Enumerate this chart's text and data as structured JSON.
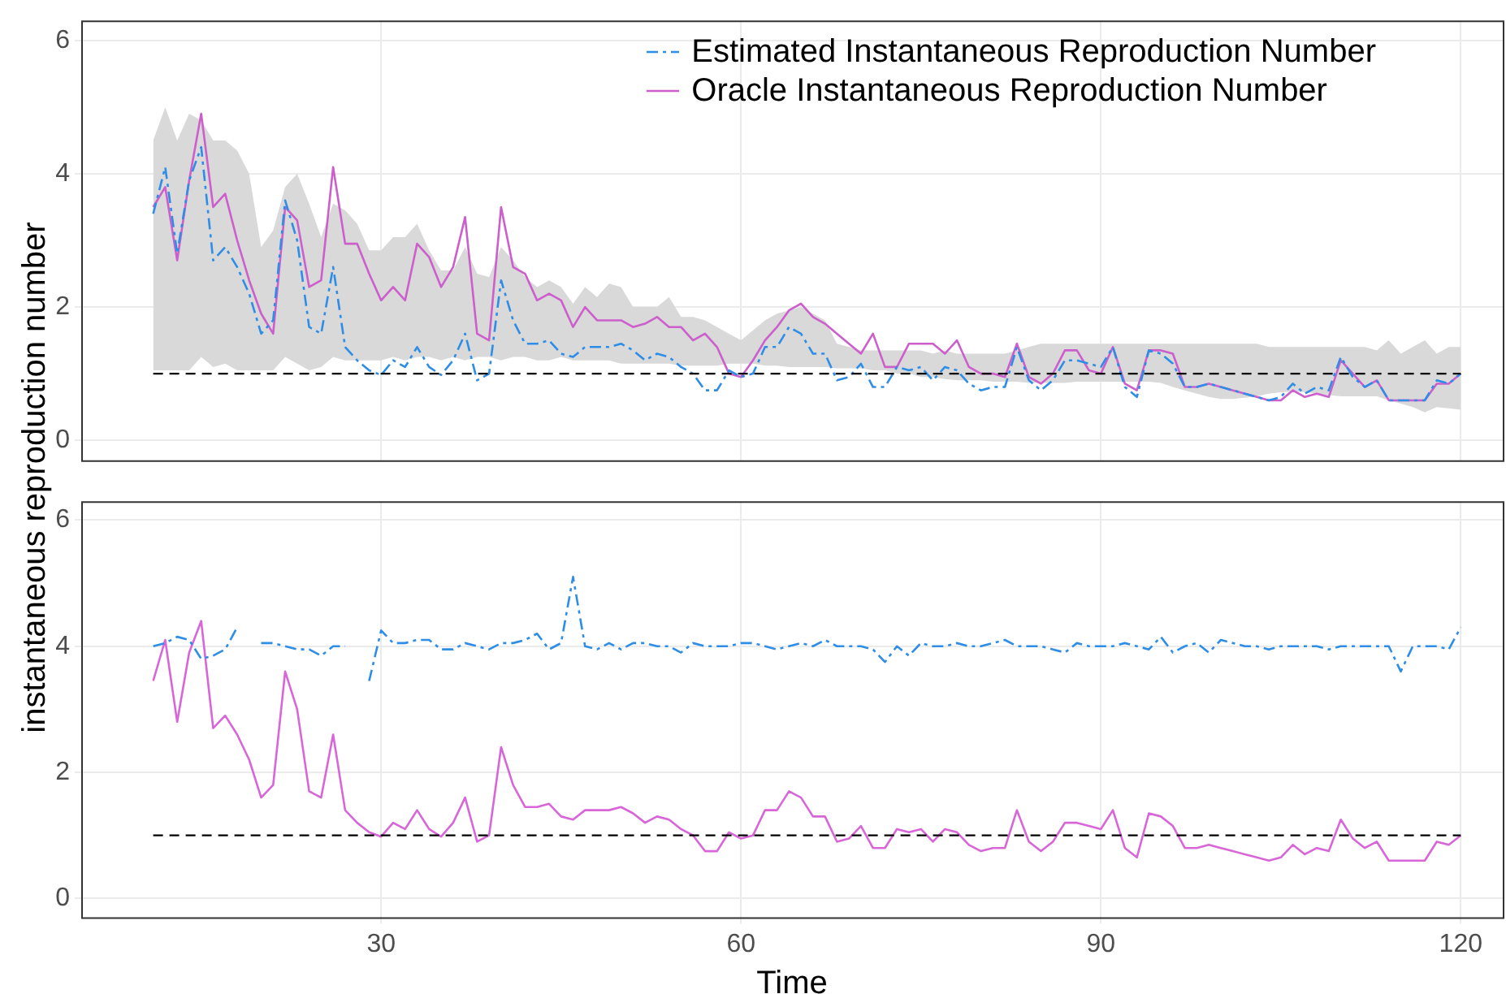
{
  "chart_data": [
    {
      "type": "line",
      "ylabel": "instantaneous reproduction number",
      "xlim": [
        5,
        123.5
      ],
      "xticks": [
        30,
        60,
        90,
        120
      ],
      "ylim": [
        -0.3,
        6.3
      ],
      "yticks": [
        0,
        2,
        4,
        6
      ],
      "tick_labels": "y",
      "grid": true,
      "legend": "top right",
      "marker": "none",
      "x": [
        11,
        12,
        13,
        14,
        15,
        16,
        17,
        18,
        19,
        20,
        21,
        22,
        23,
        24,
        25,
        26,
        27,
        28,
        29,
        30,
        31,
        32,
        33,
        34,
        35,
        36,
        37,
        38,
        39,
        40,
        41,
        42,
        43,
        44,
        45,
        46,
        47,
        48,
        49,
        50,
        51,
        52,
        53,
        54,
        55,
        56,
        57,
        58,
        59,
        60,
        61,
        62,
        63,
        64,
        65,
        66,
        67,
        68,
        69,
        70,
        71,
        72,
        73,
        74,
        75,
        76,
        77,
        78,
        79,
        80,
        81,
        82,
        83,
        84,
        85,
        86,
        87,
        88,
        89,
        90,
        91,
        92,
        93,
        94,
        95,
        96,
        97,
        98,
        99,
        100,
        101,
        102,
        103,
        104,
        105,
        106,
        107,
        108,
        109,
        110,
        111,
        112,
        113,
        114,
        115,
        116,
        117,
        118,
        119,
        120
      ],
      "ref_lines": [
        {
          "axis": "y",
          "value": 1,
          "line_style": "dashed",
          "color": "#000000"
        }
      ],
      "series": [
        {
          "name": "Estimated Instantaneous Reproduction Number",
          "color": "#2e8de6",
          "line_style": "dashed",
          "values": [
            3.4,
            4.1,
            2.8,
            3.9,
            4.4,
            2.7,
            2.9,
            2.6,
            2.2,
            1.6,
            1.8,
            3.6,
            3.0,
            1.7,
            1.6,
            2.6,
            1.4,
            1.2,
            1.05,
            0.98,
            1.2,
            1.1,
            1.4,
            1.1,
            0.98,
            1.2,
            1.6,
            0.9,
            1.0,
            2.4,
            1.8,
            1.45,
            1.45,
            1.5,
            1.3,
            1.25,
            1.4,
            1.4,
            1.4,
            1.45,
            1.35,
            1.2,
            1.3,
            1.25,
            1.1,
            1.0,
            0.75,
            0.75,
            1.05,
            0.95,
            1.0,
            1.4,
            1.4,
            1.7,
            1.6,
            1.3,
            1.3,
            0.9,
            0.95,
            1.15,
            0.8,
            0.8,
            1.1,
            1.05,
            1.1,
            0.9,
            1.1,
            1.05,
            0.85,
            0.75,
            0.8,
            0.8,
            1.4,
            0.9,
            0.75,
            0.9,
            1.2,
            1.2,
            1.15,
            1.1,
            1.4,
            0.8,
            0.65,
            1.35,
            1.3,
            1.15,
            0.8,
            0.8,
            0.85,
            0.8,
            0.75,
            0.7,
            0.65,
            0.6,
            0.65,
            0.85,
            0.7,
            0.8,
            0.75,
            1.25,
            0.95,
            0.8,
            0.9,
            0.6,
            0.6,
            0.6,
            0.6,
            0.9,
            0.85,
            1.0
          ],
          "upper": [
            4.5,
            5.0,
            4.5,
            4.9,
            4.8,
            4.5,
            4.5,
            4.35,
            4.0,
            2.9,
            3.15,
            3.8,
            4.0,
            3.55,
            3.05,
            3.55,
            3.45,
            3.25,
            2.85,
            2.85,
            3.05,
            3.05,
            3.25,
            2.85,
            2.55,
            2.55,
            2.9,
            2.5,
            2.45,
            2.9,
            2.7,
            2.45,
            2.3,
            2.4,
            2.3,
            2.05,
            2.3,
            2.15,
            2.35,
            2.3,
            2.0,
            2.0,
            2.0,
            2.15,
            1.85,
            1.85,
            1.8,
            1.7,
            1.6,
            1.5,
            1.65,
            1.8,
            1.9,
            1.95,
            2.0,
            1.9,
            1.8,
            1.45,
            1.4,
            1.35,
            1.35,
            1.35,
            1.35,
            1.35,
            1.35,
            1.3,
            1.35,
            1.3,
            1.3,
            1.3,
            1.3,
            1.3,
            1.35,
            1.4,
            1.45,
            1.45,
            1.45,
            1.45,
            1.45,
            1.45,
            1.45,
            1.45,
            1.45,
            1.45,
            1.45,
            1.45,
            1.45,
            1.45,
            1.45,
            1.45,
            1.45,
            1.45,
            1.45,
            1.4,
            1.4,
            1.4,
            1.4,
            1.4,
            1.4,
            1.4,
            1.4,
            1.4,
            1.35,
            1.5,
            1.3,
            1.4,
            1.5,
            1.3,
            1.4,
            1.4
          ],
          "lower": [
            1.05,
            1.05,
            1.05,
            1.05,
            1.25,
            1.1,
            1.15,
            1.05,
            1.05,
            1.05,
            1.05,
            1.25,
            1.15,
            1.05,
            1.1,
            1.25,
            1.2,
            1.2,
            1.2,
            1.2,
            1.25,
            1.2,
            1.25,
            1.25,
            1.2,
            1.25,
            1.2,
            1.25,
            1.25,
            1.2,
            1.25,
            1.25,
            1.2,
            1.2,
            1.25,
            1.2,
            1.2,
            1.2,
            1.2,
            1.15,
            1.15,
            1.15,
            1.15,
            1.15,
            1.12,
            1.12,
            1.12,
            1.12,
            1.15,
            1.15,
            1.15,
            1.12,
            1.12,
            1.1,
            1.1,
            1.1,
            1.1,
            1.08,
            1.08,
            1.08,
            1.05,
            1.05,
            1.0,
            1.0,
            0.95,
            0.95,
            0.92,
            0.9,
            0.9,
            0.9,
            0.88,
            0.88,
            0.88,
            0.86,
            0.86,
            0.86,
            0.86,
            0.88,
            0.88,
            0.88,
            0.88,
            0.88,
            0.88,
            0.88,
            0.86,
            0.8,
            0.75,
            0.7,
            0.65,
            0.62,
            0.62,
            0.64,
            0.66,
            0.7,
            0.72,
            0.73,
            0.72,
            0.7,
            0.68,
            0.66,
            0.66,
            0.66,
            0.66,
            0.6,
            0.55,
            0.5,
            0.42,
            0.5,
            0.48,
            0.46
          ]
        },
        {
          "name": "Oracle Instantaneous Reproduction Number",
          "color": "#cc5fcc",
          "line_style": "solid",
          "values": [
            3.5,
            3.8,
            2.7,
            3.9,
            4.9,
            3.5,
            3.7,
            3.0,
            2.4,
            1.9,
            1.6,
            3.5,
            3.3,
            2.3,
            2.4,
            4.1,
            2.95,
            2.95,
            2.5,
            2.1,
            2.3,
            2.1,
            2.95,
            2.75,
            2.3,
            2.6,
            3.35,
            1.6,
            1.5,
            3.5,
            2.6,
            2.5,
            2.1,
            2.2,
            2.1,
            1.7,
            2.0,
            1.8,
            1.8,
            1.8,
            1.7,
            1.75,
            1.85,
            1.7,
            1.7,
            1.5,
            1.6,
            1.4,
            1.0,
            0.95,
            1.2,
            1.5,
            1.7,
            1.95,
            2.05,
            1.85,
            1.75,
            1.6,
            1.45,
            1.3,
            1.6,
            1.1,
            1.1,
            1.45,
            1.45,
            1.45,
            1.3,
            1.5,
            1.1,
            1.0,
            1.0,
            0.95,
            1.45,
            0.95,
            0.85,
            1.0,
            1.35,
            1.35,
            1.05,
            1.0,
            1.4,
            0.85,
            0.75,
            1.35,
            1.35,
            1.3,
            0.8,
            0.8,
            0.85,
            0.8,
            0.75,
            0.7,
            0.65,
            0.6,
            0.6,
            0.75,
            0.65,
            0.7,
            0.65,
            1.2,
            1.0,
            0.8,
            0.9,
            0.6,
            0.6,
            0.6,
            0.6,
            0.85,
            0.85,
            1.0
          ]
        }
      ]
    },
    {
      "type": "line",
      "xlabel": "Time",
      "xlim": [
        5,
        123.5
      ],
      "xticks": [
        30,
        60,
        90,
        120
      ],
      "ylim": [
        -0.3,
        6.3
      ],
      "yticks": [
        0,
        2,
        4,
        6
      ],
      "grid": true,
      "marker": "none",
      "x": [
        11,
        12,
        13,
        14,
        15,
        16,
        17,
        18,
        19,
        20,
        21,
        22,
        23,
        24,
        25,
        26,
        27,
        28,
        29,
        30,
        31,
        32,
        33,
        34,
        35,
        36,
        37,
        38,
        39,
        40,
        41,
        42,
        43,
        44,
        45,
        46,
        47,
        48,
        49,
        50,
        51,
        52,
        53,
        54,
        55,
        56,
        57,
        58,
        59,
        60,
        61,
        62,
        63,
        64,
        65,
        66,
        67,
        68,
        69,
        70,
        71,
        72,
        73,
        74,
        75,
        76,
        77,
        78,
        79,
        80,
        81,
        82,
        83,
        84,
        85,
        86,
        87,
        88,
        89,
        90,
        91,
        92,
        93,
        94,
        95,
        96,
        97,
        98,
        99,
        100,
        101,
        102,
        103,
        104,
        105,
        106,
        107,
        108,
        109,
        110,
        111,
        112,
        113,
        114,
        115,
        116,
        117,
        118,
        119,
        120
      ],
      "ref_lines": [
        {
          "axis": "y",
          "value": 1,
          "line_style": "dashed",
          "color": "#000000"
        }
      ],
      "series": [
        {
          "color": "#2e8de6",
          "line_style": "dashed",
          "values": [
            4.0,
            4.05,
            4.15,
            4.1,
            3.8,
            3.85,
            3.95,
            4.3,
            null,
            4.05,
            4.05,
            4.0,
            3.95,
            3.95,
            3.85,
            4.0,
            4.0,
            null,
            3.45,
            4.25,
            4.05,
            4.05,
            4.1,
            4.1,
            3.95,
            3.95,
            4.05,
            4.0,
            3.95,
            4.05,
            4.05,
            4.1,
            4.2,
            3.95,
            4.05,
            5.1,
            4.0,
            3.95,
            4.05,
            3.95,
            4.05,
            4.05,
            4.0,
            4.0,
            3.9,
            4.05,
            4.0,
            4.0,
            4.0,
            4.05,
            4.05,
            4.0,
            3.95,
            4.0,
            4.05,
            4.0,
            4.1,
            4.0,
            4.0,
            4.0,
            3.95,
            3.75,
            4.0,
            3.85,
            4.05,
            4.0,
            4.0,
            4.05,
            4.0,
            4.0,
            4.05,
            4.1,
            4.0,
            4.0,
            4.0,
            3.95,
            3.9,
            4.05,
            4.0,
            4.0,
            4.0,
            4.05,
            4.0,
            3.95,
            4.15,
            3.9,
            4.0,
            4.05,
            3.9,
            4.1,
            4.05,
            4.0,
            4.0,
            3.95,
            4.0,
            4.0,
            4.0,
            4.0,
            3.95,
            4.0,
            4.0,
            4.0,
            4.0,
            4.0,
            3.6,
            4.0,
            4.0,
            4.0,
            3.95,
            4.3
          ]
        },
        {
          "color": "#d866d8",
          "line_style": "solid",
          "values": [
            3.45,
            4.1,
            2.8,
            3.9,
            4.4,
            2.7,
            2.9,
            2.6,
            2.2,
            1.6,
            1.8,
            3.6,
            3.0,
            1.7,
            1.6,
            2.6,
            1.4,
            1.2,
            1.05,
            0.98,
            1.2,
            1.1,
            1.4,
            1.1,
            0.98,
            1.2,
            1.6,
            0.9,
            1.0,
            2.4,
            1.8,
            1.45,
            1.45,
            1.5,
            1.3,
            1.25,
            1.4,
            1.4,
            1.4,
            1.45,
            1.35,
            1.2,
            1.3,
            1.25,
            1.1,
            1.0,
            0.75,
            0.75,
            1.05,
            0.95,
            1.0,
            1.4,
            1.4,
            1.7,
            1.6,
            1.3,
            1.3,
            0.9,
            0.95,
            1.15,
            0.8,
            0.8,
            1.1,
            1.05,
            1.1,
            0.9,
            1.1,
            1.05,
            0.85,
            0.75,
            0.8,
            0.8,
            1.4,
            0.9,
            0.75,
            0.9,
            1.2,
            1.2,
            1.15,
            1.1,
            1.4,
            0.8,
            0.65,
            1.35,
            1.3,
            1.15,
            0.8,
            0.8,
            0.85,
            0.8,
            0.75,
            0.7,
            0.65,
            0.6,
            0.65,
            0.85,
            0.7,
            0.8,
            0.75,
            1.25,
            0.95,
            0.8,
            0.9,
            0.6,
            0.6,
            0.6,
            0.6,
            0.9,
            0.85,
            1.0
          ]
        }
      ]
    }
  ]
}
